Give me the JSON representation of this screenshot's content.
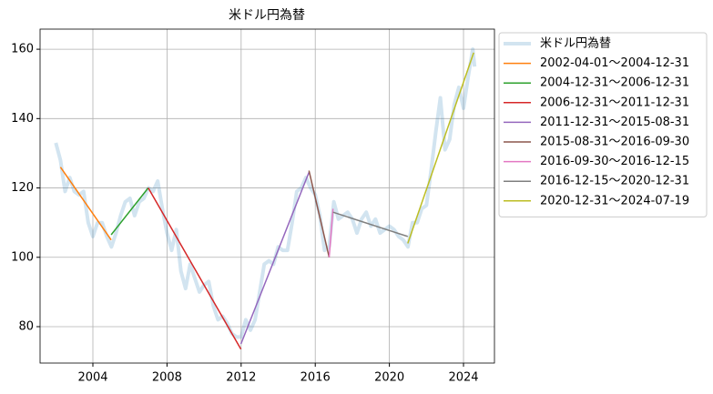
{
  "chart_data": {
    "type": "line",
    "title": "米ドル円為替",
    "xlim": [
      2001.15,
      2025.67
    ],
    "xticks": [
      2004,
      2008,
      2012,
      2016,
      2020,
      2024
    ],
    "ylim": [
      69.5,
      165.8
    ],
    "yticks": [
      80,
      100,
      120,
      140,
      160
    ],
    "grid": true,
    "legend": "outside-upper-right",
    "series": [
      {
        "name": "米ドル円為替",
        "color": "#1f77b4",
        "opacity": 0.2,
        "width": 4,
        "x": [
          2002.0,
          2002.25,
          2002.5,
          2002.75,
          2003.0,
          2003.25,
          2003.5,
          2003.75,
          2004.0,
          2004.25,
          2004.5,
          2004.75,
          2005.0,
          2005.25,
          2005.5,
          2005.75,
          2006.0,
          2006.25,
          2006.5,
          2006.75,
          2007.0,
          2007.25,
          2007.5,
          2007.75,
          2008.0,
          2008.25,
          2008.5,
          2008.75,
          2009.0,
          2009.25,
          2009.5,
          2009.75,
          2010.0,
          2010.25,
          2010.5,
          2010.75,
          2011.0,
          2011.25,
          2011.5,
          2011.75,
          2012.0,
          2012.25,
          2012.5,
          2012.75,
          2013.0,
          2013.25,
          2013.5,
          2013.75,
          2014.0,
          2014.25,
          2014.5,
          2014.75,
          2015.0,
          2015.25,
          2015.5,
          2015.75,
          2016.0,
          2016.25,
          2016.5,
          2016.75,
          2017.0,
          2017.25,
          2017.5,
          2017.75,
          2018.0,
          2018.25,
          2018.5,
          2018.75,
          2019.0,
          2019.25,
          2019.5,
          2019.75,
          2020.0,
          2020.25,
          2020.5,
          2020.75,
          2021.0,
          2021.25,
          2021.5,
          2021.75,
          2022.0,
          2022.25,
          2022.5,
          2022.75,
          2023.0,
          2023.25,
          2023.5,
          2023.75,
          2024.0,
          2024.25,
          2024.5,
          2024.6
        ],
        "values": [
          133,
          128,
          119,
          123,
          119,
          118,
          119,
          110,
          106,
          110,
          110,
          106,
          103,
          107,
          112,
          116,
          117,
          112,
          116,
          117,
          120,
          119,
          122,
          114,
          107,
          102,
          108,
          96,
          91,
          98,
          94,
          90,
          92,
          93,
          86,
          82,
          83,
          81,
          78,
          77,
          77,
          82,
          79,
          82,
          90,
          98,
          99,
          98,
          103,
          102,
          102,
          110,
          119,
          120,
          123,
          120,
          118,
          112,
          102,
          103,
          116,
          111,
          112,
          113,
          111,
          107,
          111,
          113,
          109,
          111,
          107,
          108,
          109,
          108,
          106,
          105,
          103,
          110,
          110,
          114,
          115,
          125,
          136,
          146,
          131,
          134,
          144,
          149,
          143,
          152,
          160,
          155
        ]
      },
      {
        "name": "2002-04-01〜2004-12-31",
        "color": "#ff7f0e",
        "width": 1.5,
        "x": [
          2002.25,
          2004.99
        ],
        "values": [
          126,
          105
        ]
      },
      {
        "name": "2004-12-31〜2006-12-31",
        "color": "#2ca02c",
        "width": 1.5,
        "x": [
          2004.99,
          2006.99
        ],
        "values": [
          106.5,
          120
        ]
      },
      {
        "name": "2006-12-31〜2011-12-31",
        "color": "#d62728",
        "width": 1.5,
        "x": [
          2006.99,
          2011.99
        ],
        "values": [
          120,
          73.5
        ]
      },
      {
        "name": "2011-12-31〜2015-08-31",
        "color": "#9467bd",
        "width": 1.5,
        "x": [
          2011.99,
          2015.66
        ],
        "values": [
          75,
          124.5
        ]
      },
      {
        "name": "2015-08-31〜2016-09-30",
        "color": "#8c564b",
        "width": 1.5,
        "x": [
          2015.66,
          2016.75
        ],
        "values": [
          125,
          100
        ]
      },
      {
        "name": "2016-09-30〜2016-12-15",
        "color": "#e377c2",
        "width": 1.5,
        "x": [
          2016.75,
          2016.96
        ],
        "values": [
          100,
          114
        ]
      },
      {
        "name": "2016-12-15〜2020-12-31",
        "color": "#7f7f7f",
        "width": 1.5,
        "x": [
          2016.96,
          2020.99
        ],
        "values": [
          113,
          106
        ]
      },
      {
        "name": "2020-12-31〜2024-07-19",
        "color": "#bcbd22",
        "width": 1.5,
        "x": [
          2020.99,
          2024.55
        ],
        "values": [
          104,
          159
        ]
      }
    ]
  }
}
